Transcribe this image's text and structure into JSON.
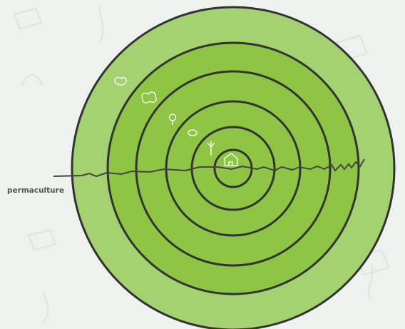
{
  "label": "permaculture"
}
